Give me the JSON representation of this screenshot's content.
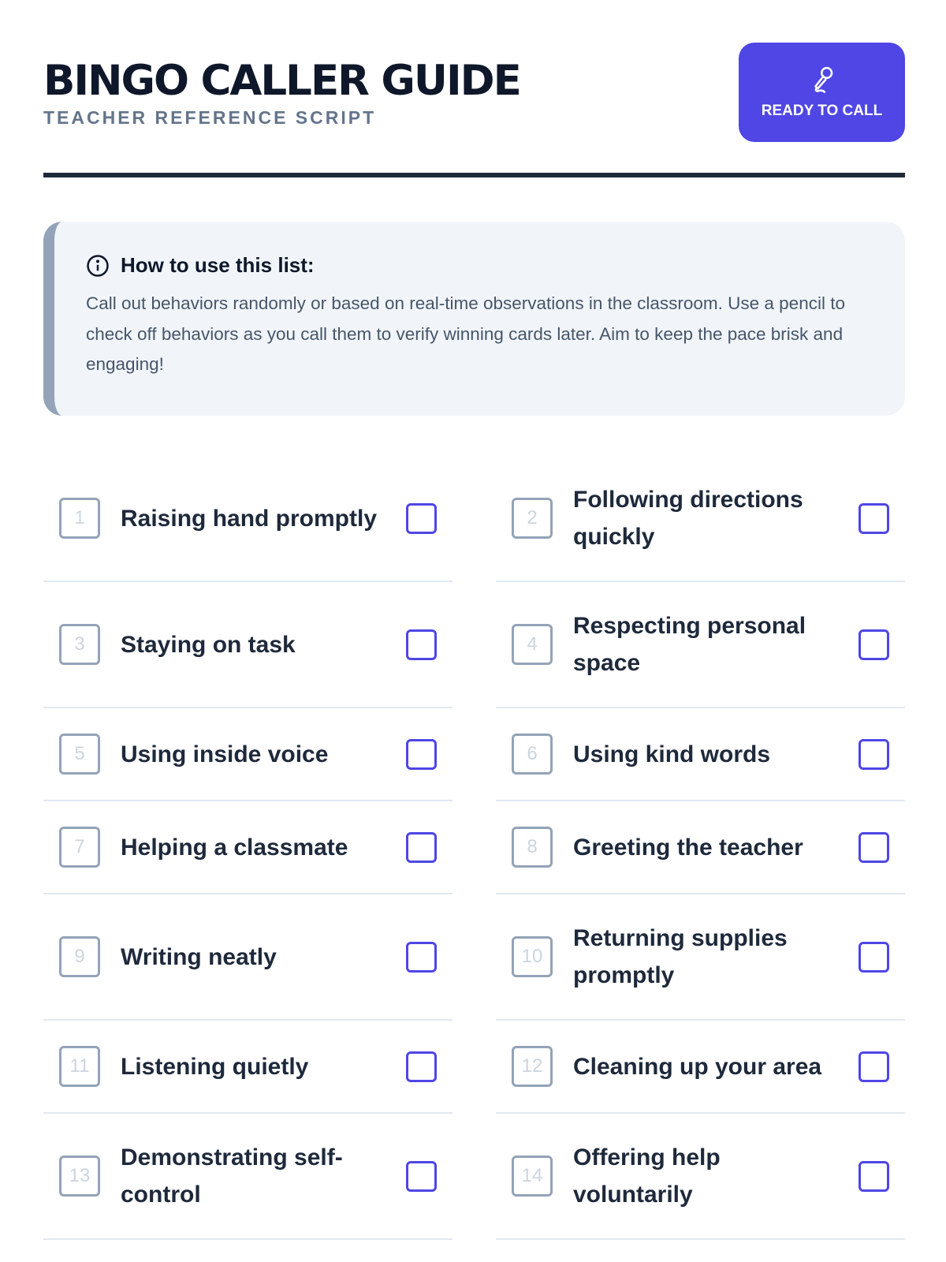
{
  "header": {
    "title": "BINGO CALLER GUIDE",
    "subtitle": "TEACHER REFERENCE SCRIPT",
    "button_label": "READY TO CALL",
    "button_icon": "microphone-icon"
  },
  "colors": {
    "accent": "#4f46e5",
    "text": "#0f172a",
    "muted": "#64748b",
    "info_bg": "#f1f5f9",
    "info_border": "#94a3b8"
  },
  "info": {
    "title": "How to use this list:",
    "body": "Call out behaviors randomly or based on real-time observations in the classroom. Use a pencil to check off behaviors as you call them to verify winning cards later. Aim to keep the pace brisk and engaging!"
  },
  "items": [
    {
      "n": "1",
      "label": "Raising hand promptly",
      "checked": false
    },
    {
      "n": "2",
      "label": "Following directions quickly",
      "checked": false
    },
    {
      "n": "3",
      "label": "Staying on task",
      "checked": false
    },
    {
      "n": "4",
      "label": "Respecting personal space",
      "checked": false
    },
    {
      "n": "5",
      "label": "Using inside voice",
      "checked": false
    },
    {
      "n": "6",
      "label": "Using kind words",
      "checked": false
    },
    {
      "n": "7",
      "label": "Helping a classmate",
      "checked": false
    },
    {
      "n": "8",
      "label": "Greeting the teacher",
      "checked": false
    },
    {
      "n": "9",
      "label": "Writing neatly",
      "checked": false
    },
    {
      "n": "10",
      "label": "Returning supplies promptly",
      "checked": false
    },
    {
      "n": "11",
      "label": "Listening quietly",
      "checked": false
    },
    {
      "n": "12",
      "label": "Cleaning up your area",
      "checked": false
    },
    {
      "n": "13",
      "label": "Demonstrating self-control",
      "checked": false
    },
    {
      "n": "14",
      "label": "Offering help voluntarily",
      "checked": false
    }
  ]
}
